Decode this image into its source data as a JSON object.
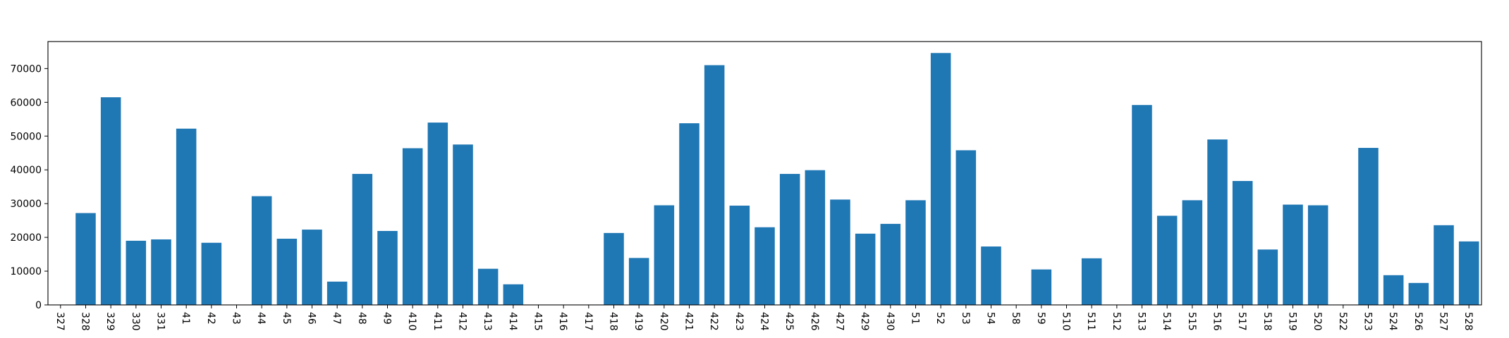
{
  "chart_data": {
    "type": "bar",
    "title": "",
    "xlabel": "",
    "ylabel": "",
    "ylim": [
      0,
      78000
    ],
    "yticks": [
      0,
      10000,
      20000,
      30000,
      40000,
      50000,
      60000,
      70000
    ],
    "ytick_labels": [
      "0",
      "10000",
      "20000",
      "30000",
      "40000",
      "50000",
      "60000",
      "70000"
    ],
    "grid": false,
    "legend": "none",
    "bar_color": "#1f77b4",
    "categories": [
      "327",
      "328",
      "329",
      "330",
      "331",
      "41",
      "42",
      "43",
      "44",
      "45",
      "46",
      "47",
      "48",
      "49",
      "410",
      "411",
      "412",
      "413",
      "414",
      "415",
      "416",
      "417",
      "418",
      "419",
      "420",
      "421",
      "422",
      "423",
      "424",
      "425",
      "426",
      "427",
      "429",
      "430",
      "51",
      "52",
      "53",
      "54",
      "58",
      "59",
      "510",
      "511",
      "512",
      "513",
      "514",
      "515",
      "516",
      "517",
      "518",
      "519",
      "520",
      "522",
      "523",
      "524",
      "526",
      "527",
      "528"
    ],
    "values": [
      0,
      27200,
      61500,
      19000,
      19400,
      52200,
      18400,
      0,
      32200,
      19600,
      22300,
      6900,
      38800,
      21900,
      46400,
      54000,
      47500,
      10700,
      6100,
      0,
      0,
      0,
      21300,
      13900,
      29500,
      53800,
      71000,
      29400,
      23000,
      38800,
      39900,
      31200,
      21100,
      24000,
      31000,
      74600,
      45800,
      17300,
      0,
      10500,
      0,
      13800,
      0,
      59200,
      26400,
      31000,
      49000,
      36700,
      16400,
      29700,
      29500,
      0,
      46500,
      8800,
      6500,
      23600,
      18800
    ]
  }
}
